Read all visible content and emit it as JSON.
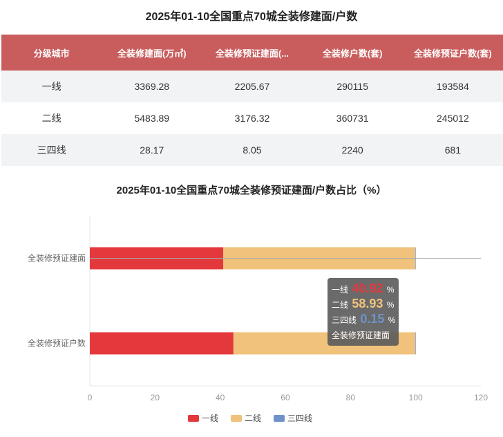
{
  "table_title": "2025年01-10全国重点70城全装修建面/户数",
  "table": {
    "headers": [
      "分级城市",
      "全装修建面(万㎡)",
      "全装修预证建面(...",
      "全装修户数(套)",
      "全装修预证户数(套)"
    ],
    "rows": [
      [
        "一线",
        "3369.28",
        "2205.67",
        "290115",
        "193584"
      ],
      [
        "二线",
        "5483.89",
        "3176.32",
        "360731",
        "245012"
      ],
      [
        "三四线",
        "28.17",
        "8.05",
        "2240",
        "681"
      ]
    ]
  },
  "chart_data": {
    "type": "bar",
    "orientation": "horizontal",
    "stacked": true,
    "title": "2025年01-10全国重点70城全装修预证建面/户数占比（%）",
    "categories": [
      "全装修预证建面",
      "全装修预证户数"
    ],
    "series": [
      {
        "name": "一线",
        "color": "#e4393c",
        "values": [
          40.92,
          44.07
        ]
      },
      {
        "name": "二线",
        "color": "#f0c27b",
        "values": [
          58.93,
          55.78
        ]
      },
      {
        "name": "三四线",
        "color": "#7092c8",
        "values": [
          0.15,
          0.16
        ]
      }
    ],
    "xlim": [
      0,
      120
    ],
    "xticks": [
      "0",
      "20",
      "40",
      "60",
      "80",
      "100",
      "120"
    ],
    "legend_position": "bottom",
    "grid": false
  },
  "tooltip": {
    "rows": [
      {
        "label": "一线",
        "value": "40.92",
        "unit": "%",
        "color": "#e4393c"
      },
      {
        "label": "二线",
        "value": "58.93",
        "unit": "%",
        "color": "#f0c27b"
      },
      {
        "label": "三四线",
        "value": "0.15",
        "unit": "%",
        "color": "#7092c8"
      }
    ],
    "footer": "全装修预证建面"
  }
}
